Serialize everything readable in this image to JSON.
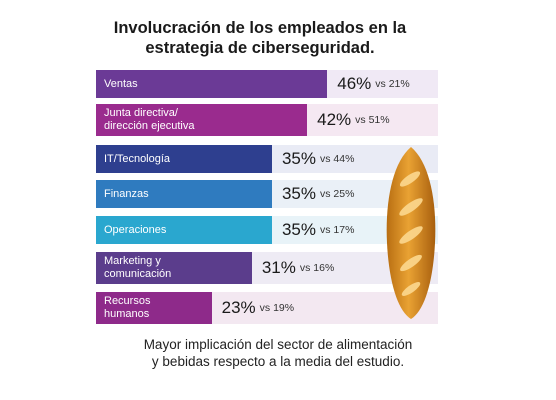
{
  "chart_data": {
    "type": "bar",
    "orientation": "horizontal",
    "title": "Involucración de los empleados en la\nestrategia de ciberseguridad.",
    "categories": [
      "Ventas",
      "Junta directiva/\ndirección ejecutiva",
      "IT/Tecnología",
      "Finanzas",
      "Operaciones",
      "Marketing y\ncomunicación",
      "Recursos\nhumanos"
    ],
    "values": [
      46,
      42,
      35,
      35,
      35,
      31,
      23
    ],
    "comparison_values": [
      21,
      51,
      44,
      25,
      17,
      16,
      19
    ],
    "value_labels": [
      "46%",
      "42%",
      "35%",
      "35%",
      "35%",
      "31%",
      "23%"
    ],
    "comparison_labels": [
      "vs 21%",
      "vs 51%",
      "vs 44%",
      "vs 25%",
      "vs 17%",
      "vs 16%",
      "vs 19%"
    ],
    "xlim": [
      0,
      100
    ],
    "bar_colors": [
      "#6b3a96",
      "#9a2b8e",
      "#2e3f8f",
      "#2f7bbf",
      "#2aa7cf",
      "#5b3d8c",
      "#8e2a8a"
    ],
    "track_colors": [
      "#f0e9f5",
      "#f5e8f2",
      "#e9ebf5",
      "#eaf0f7",
      "#e8f3f8",
      "#eeebf4",
      "#f3e8f1"
    ],
    "footnote": "Mayor implicación del sector de alimentación\ny bebidas respecto a la media del estudio.",
    "grid": false,
    "legend": "none"
  },
  "icons": {
    "illustration": "bread-icon"
  }
}
